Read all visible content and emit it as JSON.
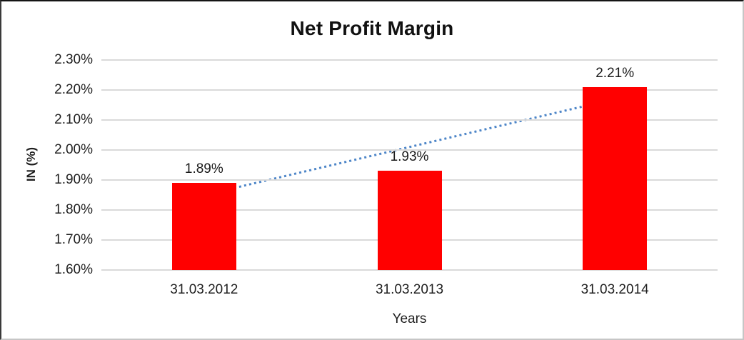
{
  "chart_data": {
    "type": "bar",
    "title": "Net Profit Margin",
    "categories": [
      "31.03.2012",
      "31.03.2013",
      "31.03.2014"
    ],
    "values": [
      1.89,
      1.93,
      2.21
    ],
    "data_labels": [
      "1.89%",
      "1.93%",
      "2.21%"
    ],
    "xlabel": "Years",
    "ylabel": "IN (%)",
    "ylim": [
      1.6,
      2.3
    ],
    "yticks": [
      {
        "value": 2.3,
        "label": "2.30%"
      },
      {
        "value": 2.2,
        "label": "2.20%"
      },
      {
        "value": 2.1,
        "label": "2.10%"
      },
      {
        "value": 2.0,
        "label": "2.00%"
      },
      {
        "value": 1.9,
        "label": "1.90%"
      },
      {
        "value": 1.8,
        "label": "1.80%"
      },
      {
        "value": 1.7,
        "label": "1.70%"
      },
      {
        "value": 1.6,
        "label": "1.60%"
      }
    ],
    "grid": true,
    "legend": "none",
    "trendline": {
      "type": "linear",
      "style": "dotted"
    },
    "colors": {
      "bar": "#FF0000",
      "trendline": "#4E86C8",
      "gridline": "#D9D9D9",
      "text": "#1F1F1F"
    }
  }
}
